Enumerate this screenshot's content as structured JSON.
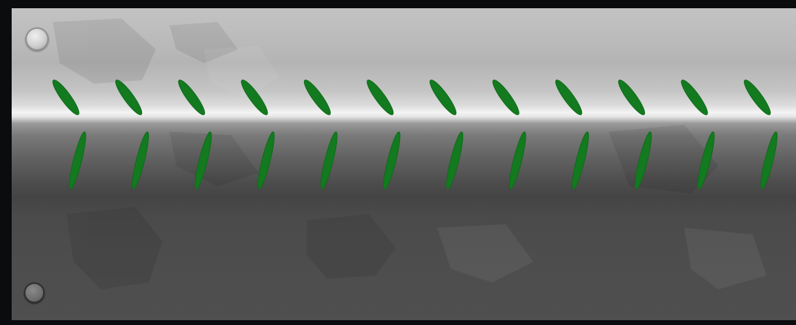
{
  "scene": {
    "background_color": "#0b0c0e",
    "panel_top_color": "#c3c3c3",
    "panel_highlight_color": "#f4f4f4",
    "panel_bottom_color": "#4f4f4f",
    "mark_color": "#137a1f",
    "mark_outline_color": "#0f6a19"
  },
  "marks": {
    "upper_row_count": 12,
    "lower_row_count": 12
  },
  "screws": [
    {
      "name": "top-left-screw"
    },
    {
      "name": "bottom-left-screw"
    }
  ]
}
